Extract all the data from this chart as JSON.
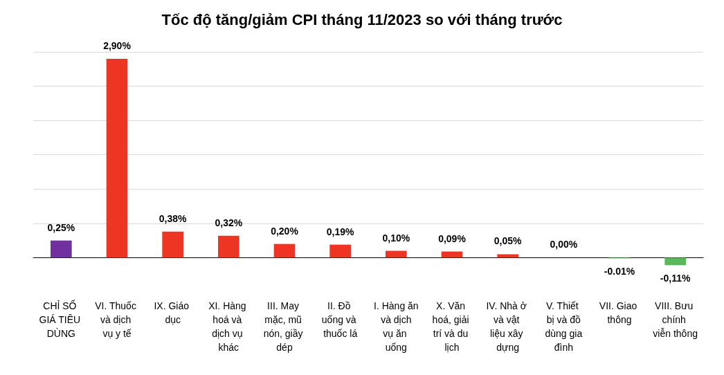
{
  "chart_data": {
    "type": "bar",
    "title": "Tốc độ tăng/giảm CPI tháng 11/2023 so với tháng trước",
    "categories": [
      "CHỈ SỐ GIÁ TIÊU DÙNG",
      "VI. Thuốc và dịch vụ y tế",
      "IX. Giáo dục",
      "XI. Hàng hoá và dịch vụ khác",
      "III. May mặc, mũ nón, giầy dép",
      "II. Đồ uống và thuốc lá",
      "I. Hàng ăn và dịch vụ ăn uống",
      "X. Văn hoá, giải trí và du lịch",
      "IV. Nhà ở và vật liệu xây dựng",
      "V. Thiết bị và đồ dùng gia đình",
      "VII. Giao thông",
      "VIII. Bưu chính viễn thông"
    ],
    "values": [
      0.25,
      2.9,
      0.38,
      0.32,
      0.2,
      0.19,
      0.1,
      0.09,
      0.05,
      0.0,
      -0.01,
      -0.11
    ],
    "value_labels": [
      "0,25%",
      "2,90%",
      "0,38%",
      "0,32%",
      "0,20%",
      "0,19%",
      "0,10%",
      "0,09%",
      "0,05%",
      "0,00%",
      "-0.01%",
      "-0,11%"
    ],
    "colors": [
      "#7030a0",
      "#ee3524",
      "#ee3524",
      "#ee3524",
      "#ee3524",
      "#ee3524",
      "#ee3524",
      "#ee3524",
      "#ee3524",
      "#ee3524",
      "#5cb85c",
      "#5cb85c"
    ],
    "yticks": [
      {
        "value": 0,
        "label": null
      },
      {
        "value": 0.5,
        "label": null
      },
      {
        "value": 1,
        "label": null
      },
      {
        "value": 1.5,
        "label": null
      },
      {
        "value": 2,
        "label": null
      },
      {
        "value": 2.5,
        "label": null
      },
      {
        "value": 3,
        "label": null
      }
    ],
    "tick_labels": "x",
    "grid": "y"
  }
}
